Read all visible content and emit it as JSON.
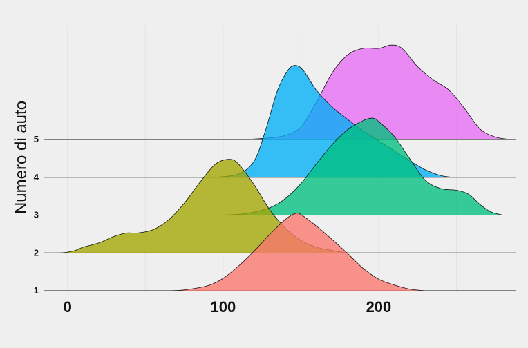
{
  "chart_data": {
    "type": "ridgeline",
    "ylabel": "Numero di auto",
    "xlim": [
      -15,
      288
    ],
    "x_ticks": [
      0,
      100,
      200
    ],
    "rows": [
      "1",
      "2",
      "3",
      "4",
      "5"
    ],
    "grid": "vertical-minor",
    "series": [
      {
        "row": "1",
        "color": "#f8766d",
        "points": [
          [
            65,
            0
          ],
          [
            75,
            0.01
          ],
          [
            90,
            0.06
          ],
          [
            100,
            0.15
          ],
          [
            110,
            0.3
          ],
          [
            120,
            0.48
          ],
          [
            130,
            0.68
          ],
          [
            140,
            0.86
          ],
          [
            146,
            0.93
          ],
          [
            150,
            0.92
          ],
          [
            160,
            0.78
          ],
          [
            170,
            0.62
          ],
          [
            180,
            0.45
          ],
          [
            190,
            0.27
          ],
          [
            200,
            0.14
          ],
          [
            210,
            0.07
          ],
          [
            220,
            0.02
          ],
          [
            230,
            0
          ]
        ]
      },
      {
        "row": "2",
        "color": "#a3a500",
        "points": [
          [
            -5,
            0
          ],
          [
            0,
            0.01
          ],
          [
            5,
            0.03
          ],
          [
            10,
            0.07
          ],
          [
            20,
            0.12
          ],
          [
            30,
            0.2
          ],
          [
            38,
            0.24
          ],
          [
            45,
            0.24
          ],
          [
            55,
            0.28
          ],
          [
            65,
            0.4
          ],
          [
            75,
            0.6
          ],
          [
            85,
            0.85
          ],
          [
            95,
            1.07
          ],
          [
            104,
            1.13
          ],
          [
            110,
            1.07
          ],
          [
            120,
            0.82
          ],
          [
            130,
            0.52
          ],
          [
            140,
            0.3
          ],
          [
            150,
            0.15
          ],
          [
            160,
            0.07
          ],
          [
            170,
            0.03
          ],
          [
            180,
            0
          ],
          [
            188,
            0
          ]
        ]
      },
      {
        "row": "3",
        "color": "#00bf7d",
        "points": [
          [
            100,
            0
          ],
          [
            115,
            0.02
          ],
          [
            130,
            0.09
          ],
          [
            140,
            0.2
          ],
          [
            150,
            0.38
          ],
          [
            160,
            0.62
          ],
          [
            170,
            0.85
          ],
          [
            180,
            1.03
          ],
          [
            190,
            1.14
          ],
          [
            196,
            1.17
          ],
          [
            200,
            1.13
          ],
          [
            210,
            0.95
          ],
          [
            220,
            0.68
          ],
          [
            230,
            0.42
          ],
          [
            240,
            0.32
          ],
          [
            250,
            0.3
          ],
          [
            258,
            0.25
          ],
          [
            265,
            0.13
          ],
          [
            272,
            0.04
          ],
          [
            280,
            0
          ]
        ]
      },
      {
        "row": "4",
        "color": "#00b0f6",
        "points": [
          [
            95,
            0
          ],
          [
            110,
            0.04
          ],
          [
            120,
            0.2
          ],
          [
            127,
            0.55
          ],
          [
            135,
            1.05
          ],
          [
            142,
            1.3
          ],
          [
            147,
            1.35
          ],
          [
            152,
            1.28
          ],
          [
            160,
            1.05
          ],
          [
            170,
            0.85
          ],
          [
            180,
            0.7
          ],
          [
            190,
            0.56
          ],
          [
            200,
            0.44
          ],
          [
            210,
            0.32
          ],
          [
            220,
            0.2
          ],
          [
            230,
            0.09
          ],
          [
            240,
            0.02
          ],
          [
            248,
            0
          ]
        ]
      },
      {
        "row": "5",
        "color": "#e76bf3",
        "points": [
          [
            115,
            0
          ],
          [
            130,
            0.02
          ],
          [
            140,
            0.05
          ],
          [
            150,
            0.15
          ],
          [
            160,
            0.45
          ],
          [
            170,
            0.8
          ],
          [
            180,
            1.02
          ],
          [
            190,
            1.1
          ],
          [
            200,
            1.1
          ],
          [
            208,
            1.14
          ],
          [
            215,
            1.1
          ],
          [
            225,
            0.88
          ],
          [
            235,
            0.72
          ],
          [
            245,
            0.6
          ],
          [
            255,
            0.38
          ],
          [
            265,
            0.13
          ],
          [
            275,
            0.03
          ],
          [
            285,
            0
          ]
        ]
      }
    ]
  }
}
